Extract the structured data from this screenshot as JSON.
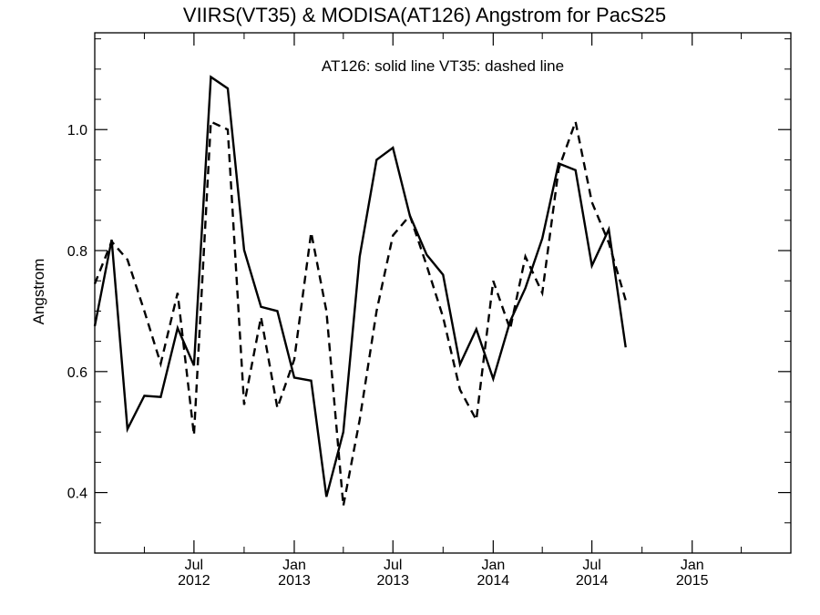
{
  "chart_data": {
    "type": "line",
    "title": "VIIRS(VT35) & MODISA(AT126)  Angstrom for PacS25",
    "annotation": "AT126: solid line   VT35: dashed line",
    "xlabel": "",
    "ylabel": "Angstrom",
    "xlim": [
      "2012-01-01",
      "2015-07-01"
    ],
    "ylim": [
      0.3,
      1.16
    ],
    "y_ticks": [
      0.4,
      0.6,
      0.8,
      1.0
    ],
    "y_tick_labels": [
      "0.4",
      "0.6",
      "0.8",
      "1.0"
    ],
    "x_ticks": [
      {
        "date": "2012-07-01",
        "month": "Jul",
        "year": "2012"
      },
      {
        "date": "2013-01-01",
        "month": "Jan",
        "year": "2013"
      },
      {
        "date": "2013-07-01",
        "month": "Jul",
        "year": "2013"
      },
      {
        "date": "2014-01-01",
        "month": "Jan",
        "year": "2014"
      },
      {
        "date": "2014-07-01",
        "month": "Jul",
        "year": "2014"
      },
      {
        "date": "2015-01-01",
        "month": "Jan",
        "year": "2015"
      }
    ],
    "grid": false,
    "series": [
      {
        "name": "AT126",
        "style": "solid",
        "color": "#000000",
        "points": [
          {
            "x": "2012-01-01",
            "y": 0.675
          },
          {
            "x": "2012-02-01",
            "y": 0.818
          },
          {
            "x": "2012-03-01",
            "y": 0.505
          },
          {
            "x": "2012-04-01",
            "y": 0.56
          },
          {
            "x": "2012-05-01",
            "y": 0.558
          },
          {
            "x": "2012-06-01",
            "y": 0.672
          },
          {
            "x": "2012-07-01",
            "y": 0.61
          },
          {
            "x": "2012-08-01",
            "y": 1.087
          },
          {
            "x": "2012-09-01",
            "y": 1.068
          },
          {
            "x": "2012-10-01",
            "y": 0.801
          },
          {
            "x": "2012-11-01",
            "y": 0.707
          },
          {
            "x": "2012-12-01",
            "y": 0.7
          },
          {
            "x": "2013-01-01",
            "y": 0.59
          },
          {
            "x": "2013-02-01",
            "y": 0.585
          },
          {
            "x": "2013-03-01",
            "y": 0.393
          },
          {
            "x": "2013-04-01",
            "y": 0.5
          },
          {
            "x": "2013-05-01",
            "y": 0.79
          },
          {
            "x": "2013-06-01",
            "y": 0.95
          },
          {
            "x": "2013-07-01",
            "y": 0.97
          },
          {
            "x": "2013-08-01",
            "y": 0.858
          },
          {
            "x": "2013-09-01",
            "y": 0.793
          },
          {
            "x": "2013-10-01",
            "y": 0.76
          },
          {
            "x": "2013-11-01",
            "y": 0.612
          },
          {
            "x": "2013-12-01",
            "y": 0.67
          },
          {
            "x": "2014-01-01",
            "y": 0.588
          },
          {
            "x": "2014-02-01",
            "y": 0.683
          },
          {
            "x": "2014-03-01",
            "y": 0.738
          },
          {
            "x": "2014-04-01",
            "y": 0.82
          },
          {
            "x": "2014-05-01",
            "y": 0.944
          },
          {
            "x": "2014-06-01",
            "y": 0.933
          },
          {
            "x": "2014-07-01",
            "y": 0.775
          },
          {
            "x": "2014-08-01",
            "y": 0.835
          },
          {
            "x": "2014-09-01",
            "y": 0.64
          }
        ]
      },
      {
        "name": "VT35",
        "style": "dashed",
        "color": "#000000",
        "points": [
          {
            "x": "2012-01-01",
            "y": 0.745
          },
          {
            "x": "2012-02-01",
            "y": 0.815
          },
          {
            "x": "2012-03-01",
            "y": 0.785
          },
          {
            "x": "2012-04-01",
            "y": 0.7
          },
          {
            "x": "2012-05-01",
            "y": 0.613
          },
          {
            "x": "2012-06-01",
            "y": 0.73
          },
          {
            "x": "2012-07-01",
            "y": 0.495
          },
          {
            "x": "2012-08-01",
            "y": 1.013
          },
          {
            "x": "2012-09-01",
            "y": 1.0
          },
          {
            "x": "2012-10-01",
            "y": 0.545
          },
          {
            "x": "2012-11-01",
            "y": 0.69
          },
          {
            "x": "2012-12-01",
            "y": 0.54
          },
          {
            "x": "2013-01-01",
            "y": 0.62
          },
          {
            "x": "2013-02-01",
            "y": 0.83
          },
          {
            "x": "2013-03-01",
            "y": 0.7
          },
          {
            "x": "2013-04-01",
            "y": 0.378
          },
          {
            "x": "2013-05-01",
            "y": 0.52
          },
          {
            "x": "2013-06-01",
            "y": 0.7
          },
          {
            "x": "2013-07-01",
            "y": 0.825
          },
          {
            "x": "2013-08-01",
            "y": 0.858
          },
          {
            "x": "2013-09-01",
            "y": 0.775
          },
          {
            "x": "2013-10-01",
            "y": 0.69
          },
          {
            "x": "2013-11-01",
            "y": 0.57
          },
          {
            "x": "2013-12-01",
            "y": 0.52
          },
          {
            "x": "2014-01-01",
            "y": 0.75
          },
          {
            "x": "2014-02-01",
            "y": 0.67
          },
          {
            "x": "2014-03-01",
            "y": 0.79
          },
          {
            "x": "2014-04-01",
            "y": 0.73
          },
          {
            "x": "2014-05-01",
            "y": 0.935
          },
          {
            "x": "2014-06-01",
            "y": 1.013
          },
          {
            "x": "2014-07-01",
            "y": 0.88
          },
          {
            "x": "2014-08-01",
            "y": 0.813
          },
          {
            "x": "2014-09-01",
            "y": 0.718
          }
        ]
      }
    ]
  }
}
